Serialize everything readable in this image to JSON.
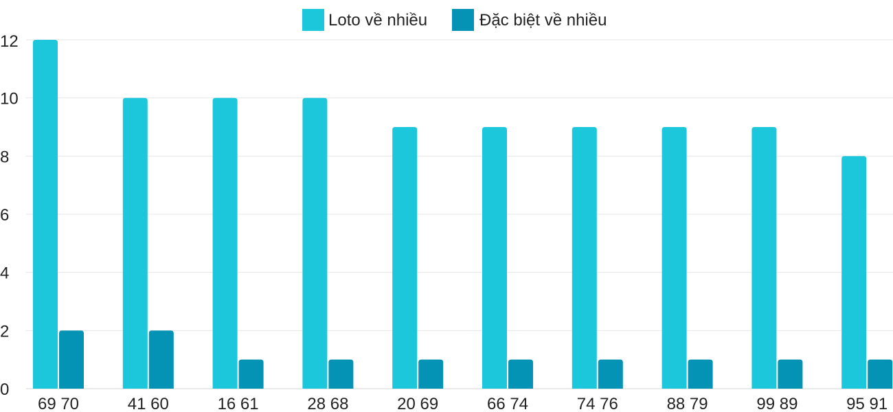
{
  "chart_data": {
    "type": "bar",
    "categories": [
      "69 70",
      "41 60",
      "16 61",
      "28 68",
      "20 69",
      "66 74",
      "74 76",
      "88 79",
      "99 89",
      "95 91"
    ],
    "series": [
      {
        "name": "Loto về nhiều",
        "color": "#1CC7DB",
        "values": [
          12,
          10,
          10,
          10,
          9,
          9,
          9,
          9,
          9,
          8
        ]
      },
      {
        "name": "Đặc biệt về nhiều",
        "color": "#0593B5",
        "values": [
          2,
          2,
          1,
          1,
          1,
          1,
          1,
          1,
          1,
          1
        ]
      }
    ],
    "ylim": [
      0,
      12
    ],
    "yticks": [
      "0",
      "2",
      "4",
      "6",
      "8",
      "10",
      "12"
    ],
    "grid": true,
    "legend": "top-center"
  }
}
